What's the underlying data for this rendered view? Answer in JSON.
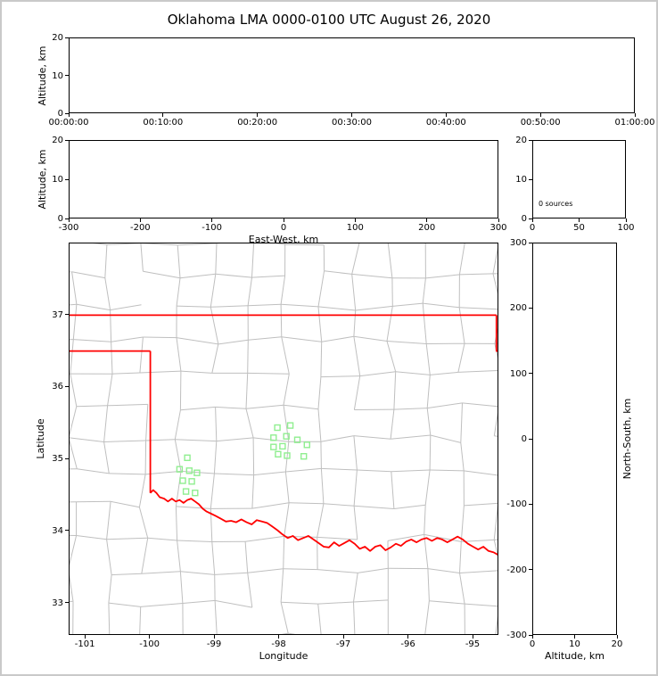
{
  "title": "Oklahoma LMA 0000-0100 UTC August 26, 2020",
  "chart_data": [
    {
      "id": "time_height",
      "type": "scatter",
      "xlabel": "",
      "ylabel": "Altitude, km",
      "xlim": [
        0,
        3600
      ],
      "ylim": [
        0,
        20
      ],
      "xticks": [
        "00:00:00",
        "00:10:00",
        "00:20:00",
        "00:30:00",
        "00:40:00",
        "00:50:00",
        "01:00:00"
      ],
      "yticks": [
        0,
        10,
        20
      ],
      "points": []
    },
    {
      "id": "ew_height",
      "type": "scatter",
      "xlabel": "East-West, km",
      "ylabel": "Altitude, km",
      "xlim": [
        -300,
        300
      ],
      "ylim": [
        0,
        20
      ],
      "xticks": [
        -300,
        -200,
        -100,
        0,
        100,
        200,
        300
      ],
      "yticks": [
        0,
        10,
        20
      ],
      "points": []
    },
    {
      "id": "alt_histogram",
      "type": "line",
      "annotation": "0 sources",
      "xlim": [
        0,
        100
      ],
      "ylim": [
        0,
        20
      ],
      "xticks": [
        0,
        50,
        100
      ],
      "yticks": [
        20,
        10,
        0
      ],
      "points": []
    },
    {
      "id": "plan_view_map",
      "type": "scatter",
      "xlabel": "Longitude",
      "ylabel": "Latitude",
      "xlim": [
        -101.25,
        -94.6
      ],
      "ylim": [
        32.55,
        38.0
      ],
      "xticks": [
        -101,
        -100,
        -99,
        -98,
        -97,
        -96,
        -95
      ],
      "yticks": [
        33,
        34,
        35,
        36,
        37
      ],
      "state_border_color": "#ff0000",
      "county_line_color": "#bfbfbf",
      "station_marker_color": "#90EE90",
      "stations": [
        [
          -99.42,
          35.01
        ],
        [
          -99.54,
          34.85
        ],
        [
          -99.39,
          34.83
        ],
        [
          -99.27,
          34.8
        ],
        [
          -99.49,
          34.69
        ],
        [
          -99.35,
          34.68
        ],
        [
          -99.44,
          34.54
        ],
        [
          -99.3,
          34.52
        ],
        [
          -98.02,
          35.43
        ],
        [
          -97.82,
          35.46
        ],
        [
          -98.08,
          35.29
        ],
        [
          -97.88,
          35.31
        ],
        [
          -97.71,
          35.26
        ],
        [
          -98.08,
          35.16
        ],
        [
          -97.94,
          35.17
        ],
        [
          -98.01,
          35.06
        ],
        [
          -97.87,
          35.04
        ],
        [
          -97.56,
          35.19
        ],
        [
          -97.61,
          35.03
        ]
      ],
      "state_border": [
        [
          [
            -101.25,
            37.0
          ],
          [
            -94.617,
            37.0
          ]
        ],
        [
          [
            -94.617,
            37.0
          ],
          [
            -94.617,
            36.5
          ],
          [
            -94.5,
            36.5
          ]
        ],
        [
          [
            -101.25,
            36.5
          ],
          [
            -99.995,
            36.5
          ]
        ],
        [
          [
            -99.995,
            36.5
          ],
          [
            -99.995,
            34.52
          ]
        ],
        [
          [
            -99.995,
            34.52
          ],
          [
            -99.95,
            34.56
          ],
          [
            -99.9,
            34.52
          ],
          [
            -99.85,
            34.46
          ],
          [
            -99.78,
            34.44
          ],
          [
            -99.72,
            34.4
          ],
          [
            -99.66,
            34.44
          ],
          [
            -99.6,
            34.4
          ],
          [
            -99.54,
            34.42
          ],
          [
            -99.48,
            34.38
          ],
          [
            -99.42,
            34.42
          ],
          [
            -99.36,
            34.44
          ],
          [
            -99.3,
            34.4
          ],
          [
            -99.24,
            34.36
          ],
          [
            -99.18,
            34.3
          ],
          [
            -99.12,
            34.26
          ],
          [
            -99.05,
            34.23
          ],
          [
            -98.98,
            34.2
          ],
          [
            -98.9,
            34.16
          ],
          [
            -98.82,
            34.12
          ],
          [
            -98.74,
            34.13
          ],
          [
            -98.66,
            34.11
          ],
          [
            -98.58,
            34.15
          ],
          [
            -98.5,
            34.11
          ],
          [
            -98.42,
            34.08
          ],
          [
            -98.34,
            34.14
          ],
          [
            -98.26,
            34.12
          ],
          [
            -98.18,
            34.1
          ],
          [
            -98.1,
            34.05
          ],
          [
            -98.02,
            34.0
          ],
          [
            -97.94,
            33.94
          ],
          [
            -97.86,
            33.89
          ],
          [
            -97.78,
            33.92
          ],
          [
            -97.7,
            33.86
          ],
          [
            -97.62,
            33.89
          ],
          [
            -97.54,
            33.92
          ],
          [
            -97.46,
            33.87
          ],
          [
            -97.38,
            33.82
          ],
          [
            -97.3,
            33.77
          ],
          [
            -97.22,
            33.76
          ],
          [
            -97.14,
            33.83
          ],
          [
            -97.06,
            33.78
          ],
          [
            -96.98,
            33.82
          ],
          [
            -96.9,
            33.86
          ],
          [
            -96.82,
            33.81
          ],
          [
            -96.74,
            33.74
          ],
          [
            -96.66,
            33.77
          ],
          [
            -96.58,
            33.71
          ],
          [
            -96.5,
            33.77
          ],
          [
            -96.42,
            33.79
          ],
          [
            -96.34,
            33.72
          ],
          [
            -96.26,
            33.76
          ],
          [
            -96.18,
            33.81
          ],
          [
            -96.1,
            33.78
          ],
          [
            -96.02,
            33.84
          ],
          [
            -95.94,
            33.87
          ],
          [
            -95.86,
            33.83
          ],
          [
            -95.78,
            33.87
          ],
          [
            -95.7,
            33.89
          ],
          [
            -95.62,
            33.85
          ],
          [
            -95.54,
            33.89
          ],
          [
            -95.46,
            33.87
          ],
          [
            -95.38,
            33.83
          ],
          [
            -95.3,
            33.87
          ],
          [
            -95.22,
            33.91
          ],
          [
            -95.14,
            33.87
          ],
          [
            -95.06,
            33.81
          ],
          [
            -94.98,
            33.77
          ],
          [
            -94.9,
            33.73
          ],
          [
            -94.82,
            33.77
          ],
          [
            -94.74,
            33.71
          ],
          [
            -94.66,
            33.69
          ],
          [
            -94.58,
            33.65
          ]
        ]
      ]
    },
    {
      "id": "ns_height",
      "type": "scatter",
      "xlabel": "Altitude, km",
      "ylabel": "North-South, km",
      "xlim": [
        0,
        20
      ],
      "ylim": [
        -300,
        300
      ],
      "xticks": [
        0,
        10,
        20
      ],
      "yticks": [
        300,
        200,
        100,
        0,
        -100,
        -200,
        -300
      ],
      "points": []
    }
  ]
}
